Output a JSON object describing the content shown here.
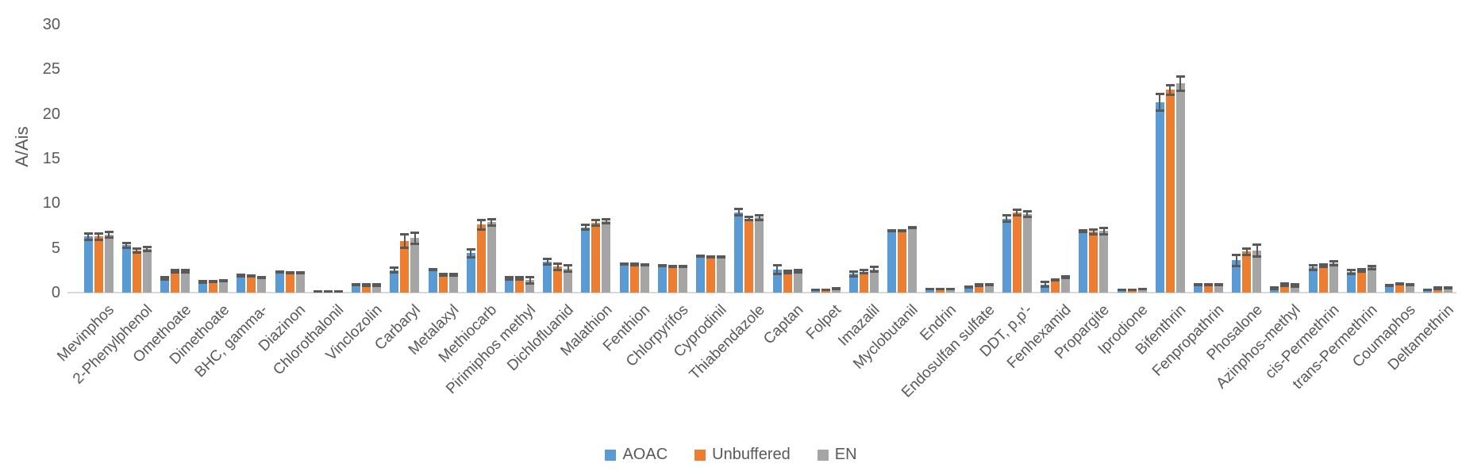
{
  "chart_data": {
    "type": "bar",
    "title": "",
    "xlabel": "",
    "ylabel": "A/Ais",
    "ylim": [
      0,
      30
    ],
    "yticks": [
      0,
      5,
      10,
      15,
      20,
      25,
      30
    ],
    "grid": false,
    "legend_position": "bottom",
    "error_bar_color": "#595959",
    "axis_line_color": "#d9d9d9",
    "text_color": "#595959",
    "categories": [
      "Mevinphos",
      "2-Phenylphenol",
      "Omethoate",
      "Dimethoate",
      "BHC, gamma-",
      "Diazinon",
      "Chlorothalonil",
      "Vinclozolin",
      "Carbaryl",
      "Metalaxyl",
      "Methiocarb",
      "Pirimiphos methyl",
      "Dichlofluanid",
      "Malathion",
      "Fenthion",
      "Chlorpyrifos",
      "Cyprodinil",
      "Thiabendazole",
      "Captan",
      "Folpet",
      "Imazalil",
      "Myclobutanil",
      "Endrin",
      "Endosulfan sulfate",
      "DDT, p,p'-",
      "Fenhexamid",
      "Propargite",
      "Iprodione",
      "Bifenthrin",
      "Fenpropathrin",
      "Phosalone",
      "Azinphos-methyl",
      "cis-Permethrin",
      "trans-Permethrin",
      "Coumaphos",
      "Deltamethrin"
    ],
    "series": [
      {
        "name": "AOAC",
        "color": "#5B9BD5",
        "values": [
          6.3,
          5.3,
          1.6,
          1.2,
          1.9,
          2.3,
          0.1,
          0.9,
          2.5,
          2.55,
          4.4,
          1.6,
          3.5,
          7.3,
          3.2,
          3.0,
          4.1,
          9.0,
          2.6,
          0.3,
          2.1,
          6.9,
          0.4,
          0.6,
          8.3,
          0.9,
          6.9,
          0.3,
          21.3,
          0.9,
          3.6,
          0.5,
          2.8,
          2.3,
          0.8,
          0.3
        ],
        "errors": [
          0.4,
          0.3,
          0.2,
          0.1,
          0.15,
          0.1,
          0.05,
          0.1,
          0.3,
          0.1,
          0.45,
          0.15,
          0.35,
          0.3,
          0.1,
          0.1,
          0.1,
          0.4,
          0.55,
          0.05,
          0.3,
          0.1,
          0.05,
          0.1,
          0.4,
          0.3,
          0.15,
          0.05,
          1.0,
          0.1,
          0.7,
          0.1,
          0.3,
          0.25,
          0.1,
          0.05
        ]
      },
      {
        "name": "Unbuffered",
        "color": "#ED7D31",
        "values": [
          6.3,
          4.7,
          2.4,
          1.25,
          1.85,
          2.25,
          0.1,
          0.85,
          5.8,
          2.0,
          7.6,
          1.6,
          2.9,
          7.8,
          3.15,
          2.95,
          4.0,
          8.3,
          2.3,
          0.35,
          2.35,
          6.9,
          0.4,
          0.85,
          9.0,
          1.4,
          6.8,
          0.35,
          22.7,
          0.9,
          4.6,
          0.9,
          3.0,
          2.5,
          1.0,
          0.5
        ],
        "errors": [
          0.4,
          0.25,
          0.15,
          0.1,
          0.1,
          0.1,
          0.05,
          0.1,
          0.8,
          0.1,
          0.6,
          0.15,
          0.4,
          0.35,
          0.1,
          0.1,
          0.1,
          0.2,
          0.15,
          0.05,
          0.2,
          0.1,
          0.05,
          0.1,
          0.35,
          0.1,
          0.3,
          0.05,
          0.6,
          0.1,
          0.4,
          0.15,
          0.2,
          0.2,
          0.1,
          0.1
        ]
      },
      {
        "name": "EN",
        "color": "#A5A5A5",
        "values": [
          6.5,
          4.9,
          2.4,
          1.3,
          1.7,
          2.25,
          0.1,
          0.85,
          6.1,
          2.0,
          7.9,
          1.4,
          2.7,
          8.0,
          3.1,
          2.95,
          4.0,
          8.4,
          2.4,
          0.45,
          2.6,
          7.3,
          0.4,
          0.9,
          8.8,
          1.75,
          6.9,
          0.4,
          23.4,
          0.9,
          4.7,
          0.8,
          3.3,
          2.8,
          0.9,
          0.55
        ],
        "errors": [
          0.35,
          0.25,
          0.2,
          0.1,
          0.1,
          0.1,
          0.05,
          0.1,
          0.65,
          0.1,
          0.4,
          0.4,
          0.4,
          0.25,
          0.1,
          0.1,
          0.1,
          0.3,
          0.2,
          0.05,
          0.3,
          0.1,
          0.05,
          0.1,
          0.35,
          0.15,
          0.4,
          0.05,
          0.85,
          0.1,
          0.7,
          0.15,
          0.25,
          0.25,
          0.1,
          0.1
        ]
      }
    ]
  }
}
